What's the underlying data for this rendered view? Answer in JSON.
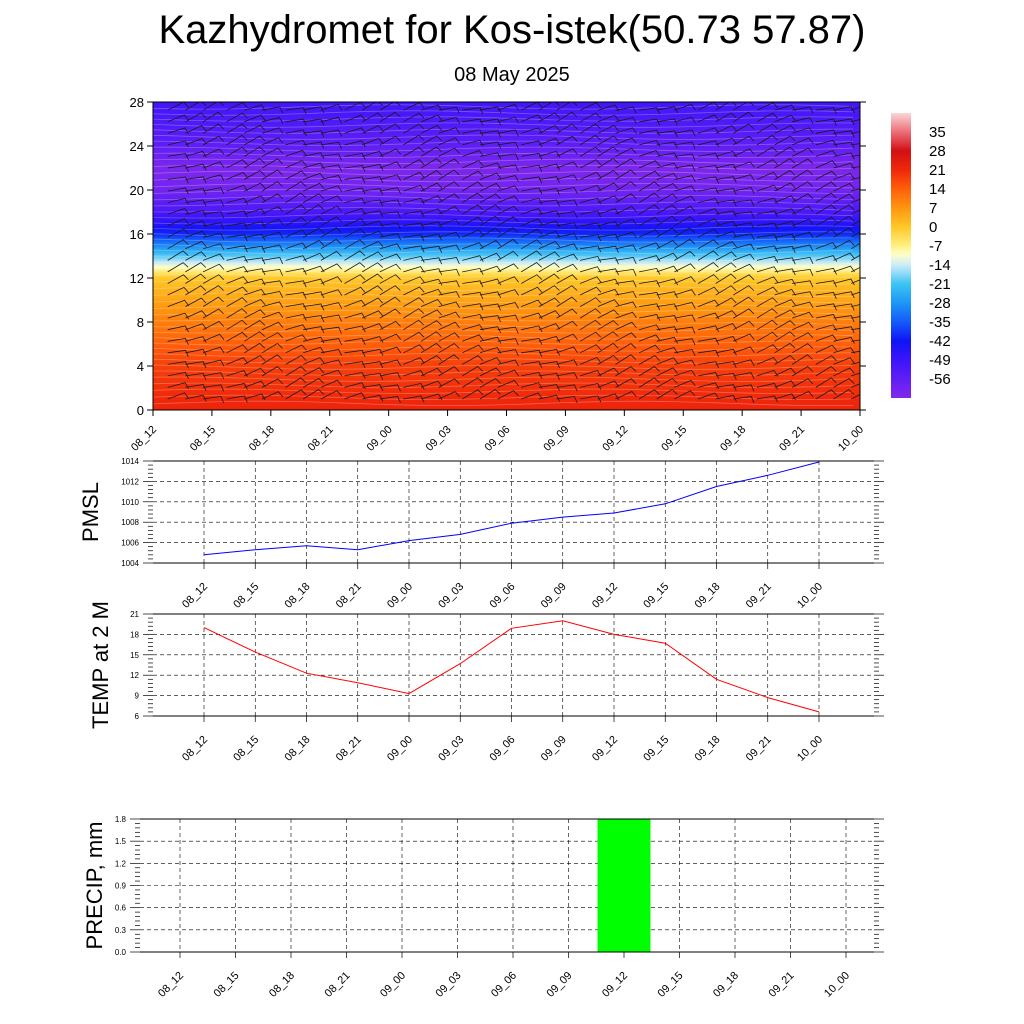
{
  "title": "Kazhydromet for Kos-istek(50.73 57.87)",
  "subtitle": "08 May 2025",
  "time_labels": [
    "08_12",
    "08_15",
    "08_18",
    "08_21",
    "09_00",
    "09_03",
    "09_06",
    "09_09",
    "09_12",
    "09_15",
    "09_18",
    "09_21",
    "10_00"
  ],
  "chart_data": [
    {
      "type": "heatmap",
      "y_ticks": [
        0,
        4,
        8,
        12,
        16,
        20,
        24,
        28
      ],
      "ylim": [
        0,
        28
      ],
      "colorbar": {
        "labels": [
          "35",
          "28",
          "21",
          "14",
          "7",
          "0",
          "-7",
          "-14",
          "-21",
          "-28",
          "-35",
          "-42",
          "-49",
          "-56"
        ],
        "range": [
          -63,
          42
        ]
      },
      "temperature_profile": {
        "levels": [
          0,
          4,
          8,
          12,
          14,
          16,
          18,
          20,
          22,
          24,
          28
        ],
        "values": [
          22,
          18,
          10,
          0,
          -20,
          -40,
          -52,
          -60,
          -62,
          -56,
          -50
        ]
      },
      "wind_barbs": true
    },
    {
      "type": "line",
      "ylabel": "PMSL",
      "color": "#0000ff",
      "ylim": [
        1004,
        1014
      ],
      "y_ticks": [
        1004,
        1006,
        1008,
        1010,
        1012,
        1014
      ],
      "values": [
        1004.8,
        1005.3,
        1005.7,
        1005.3,
        1006.2,
        1006.8,
        1007.9,
        1008.5,
        1008.9,
        1009.8,
        1011.5,
        1012.6,
        1013.9
      ]
    },
    {
      "type": "line",
      "ylabel": "TEMP at 2 M",
      "color": "#ff0000",
      "ylim": [
        6,
        21
      ],
      "y_ticks": [
        6,
        9,
        12,
        15,
        18,
        21
      ],
      "values": [
        19.0,
        15.4,
        12.3,
        10.9,
        9.3,
        13.7,
        18.9,
        20.0,
        18.0,
        16.7,
        11.4,
        8.7,
        6.6
      ]
    },
    {
      "type": "bar",
      "ylabel": "PRECIP, mm",
      "color": "#00ff00",
      "ylim": [
        0,
        1.8
      ],
      "y_ticks": [
        "0.0",
        "0.3",
        "0.6",
        "0.9",
        "1.2",
        "1.5",
        "1.8"
      ],
      "values": [
        0,
        0,
        0,
        0,
        0,
        0,
        0,
        0,
        1.8,
        0,
        0,
        0,
        0
      ]
    }
  ]
}
